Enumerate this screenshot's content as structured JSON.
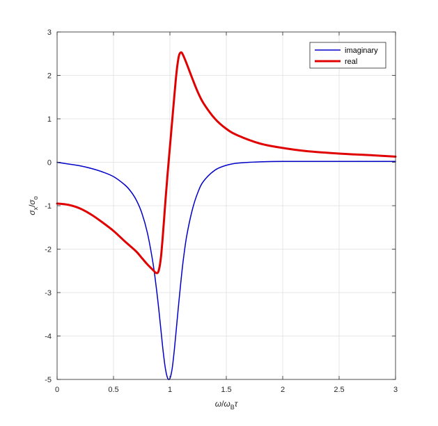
{
  "chart_data": {
    "type": "line",
    "title": "",
    "xlabel": "ω/ω_Bτ",
    "ylabel": "σ_x/σ_o",
    "xlim": [
      0,
      3
    ],
    "ylim": [
      -5,
      3
    ],
    "xticks": [
      0,
      0.5,
      1,
      1.5,
      2,
      2.5,
      3
    ],
    "xtick_labels": [
      "0",
      "0.5",
      "1",
      "1.5",
      "2",
      "2.5",
      "3"
    ],
    "yticks": [
      -5,
      -4,
      -3,
      -2,
      -1,
      0,
      1,
      2,
      3
    ],
    "ytick_labels": [
      "-5",
      "-4",
      "-3",
      "-2",
      "-1",
      "0",
      "1",
      "2",
      "3"
    ],
    "grid": true,
    "legend_position": "top-right",
    "series": [
      {
        "name": "imaginary",
        "color": "#0000c8",
        "x": [
          0,
          0.1,
          0.2,
          0.3,
          0.4,
          0.5,
          0.6,
          0.65,
          0.7,
          0.75,
          0.8,
          0.85,
          0.88,
          0.9,
          0.92,
          0.94,
          0.96,
          0.98,
          1.0,
          1.02,
          1.04,
          1.06,
          1.08,
          1.1,
          1.12,
          1.15,
          1.2,
          1.25,
          1.3,
          1.4,
          1.5,
          1.6,
          1.8,
          2.0,
          2.5,
          3.0
        ],
        "y": [
          0,
          -0.04,
          -0.08,
          -0.14,
          -0.22,
          -0.33,
          -0.52,
          -0.66,
          -0.86,
          -1.16,
          -1.62,
          -2.32,
          -2.9,
          -3.35,
          -3.85,
          -4.35,
          -4.75,
          -4.97,
          -4.98,
          -4.75,
          -4.3,
          -3.75,
          -3.2,
          -2.68,
          -2.22,
          -1.68,
          -1.08,
          -0.68,
          -0.43,
          -0.18,
          -0.07,
          -0.02,
          0.01,
          0.02,
          0.02,
          0.02
        ]
      },
      {
        "name": "real",
        "color": "#e00000",
        "x": [
          0,
          0.1,
          0.2,
          0.3,
          0.4,
          0.5,
          0.6,
          0.7,
          0.75,
          0.8,
          0.85,
          0.88,
          0.9,
          0.92,
          0.94,
          0.96,
          0.98,
          1.0,
          1.02,
          1.04,
          1.06,
          1.08,
          1.1,
          1.12,
          1.15,
          1.2,
          1.25,
          1.3,
          1.4,
          1.5,
          1.6,
          1.8,
          2.0,
          2.2,
          2.5,
          2.8,
          3.0
        ],
        "y": [
          -0.95,
          -0.98,
          -1.06,
          -1.2,
          -1.38,
          -1.58,
          -1.82,
          -2.05,
          -2.2,
          -2.35,
          -2.48,
          -2.55,
          -2.5,
          -2.2,
          -1.6,
          -0.9,
          -0.25,
          0.35,
          0.95,
          1.55,
          2.1,
          2.45,
          2.53,
          2.45,
          2.26,
          1.92,
          1.6,
          1.35,
          1.0,
          0.77,
          0.62,
          0.43,
          0.33,
          0.26,
          0.2,
          0.16,
          0.13
        ]
      }
    ]
  }
}
